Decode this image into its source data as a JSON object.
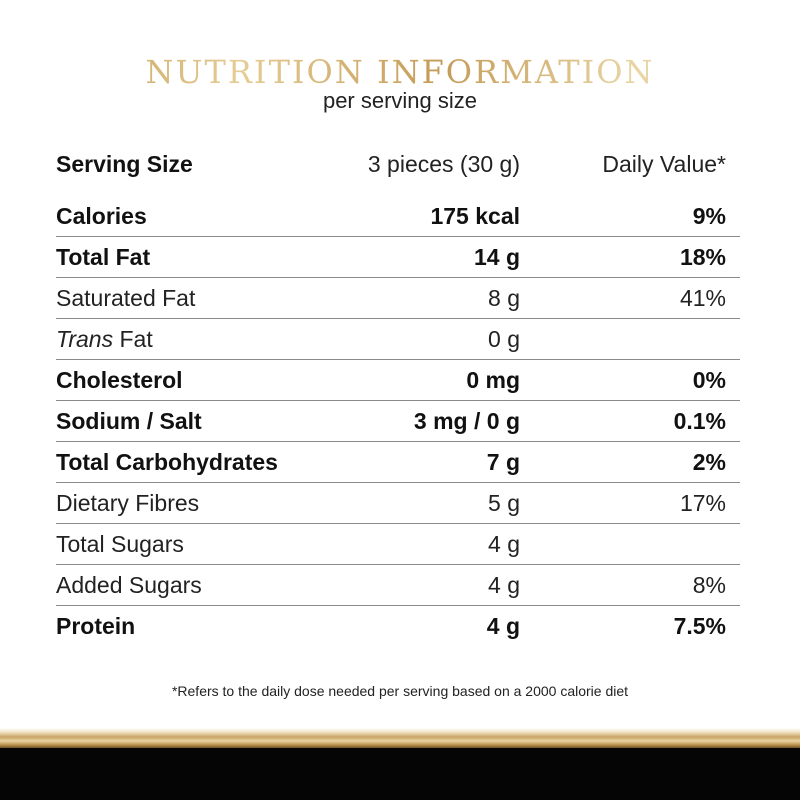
{
  "header": {
    "title": "NUTRITION INFORMATION",
    "subtitle": "per serving size"
  },
  "serving": {
    "label": "Serving Size",
    "amount": "3 pieces (30 g)",
    "dv_label": "Daily Value*"
  },
  "rows": [
    {
      "name": "Calories",
      "amount": "175 kcal",
      "dv": "9%",
      "bold": true
    },
    {
      "name": "Total Fat",
      "amount": "14 g",
      "dv": "18%",
      "bold": true
    },
    {
      "name": "Saturated Fat",
      "amount": "8 g",
      "dv": "41%",
      "bold": false
    },
    {
      "name_italic": "Trans",
      "name": " Fat",
      "amount": "0 g",
      "dv": "",
      "bold": false
    },
    {
      "name": "Cholesterol",
      "amount": "0 mg",
      "dv": "0%",
      "bold": true
    },
    {
      "name": "Sodium / Salt",
      "amount": "3 mg / 0 g",
      "dv": "0.1%",
      "bold": true
    },
    {
      "name": "Total Carbohydrates",
      "amount": "7 g",
      "dv": "2%",
      "bold": true
    },
    {
      "name": "Dietary Fibres",
      "amount": "5 g",
      "dv": "17%",
      "bold": false
    },
    {
      "name": "Total Sugars",
      "amount": "4 g",
      "dv": "",
      "bold": false
    },
    {
      "name": "Added Sugars",
      "amount": "4 g",
      "dv": "8%",
      "bold": false
    },
    {
      "name": "Protein",
      "amount": "4 g",
      "dv": "7.5%",
      "bold": true
    }
  ],
  "footnote": "*Refers to the daily dose needed per serving based on a 2000 calorie diet",
  "colors": {
    "gold": "#c9a465",
    "black_band": "#050505",
    "divider": "#8a8a8a"
  }
}
